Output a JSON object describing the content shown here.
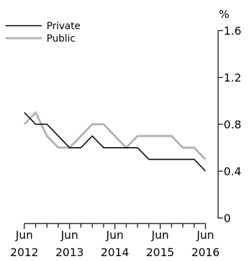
{
  "chart_data": {
    "type": "line",
    "title": "",
    "xlabel": "",
    "ylabel": "%",
    "ylim": [
      0,
      1.6
    ],
    "yticks": [
      0,
      0.4,
      0.8,
      1.2,
      1.6
    ],
    "ytick_labels": [
      "0",
      "0.4",
      "0.8",
      "1.2",
      "1.6"
    ],
    "y_axis_position": "right",
    "grid": false,
    "legend_position": "top-left",
    "x_tick_labels": [
      {
        "month": "Jun",
        "year": "2012"
      },
      {
        "month": "Jun",
        "year": "2013"
      },
      {
        "month": "Jun",
        "year": "2014"
      },
      {
        "month": "Jun",
        "year": "2015"
      },
      {
        "month": "Jun",
        "year": "2016"
      }
    ],
    "x": [
      "Jun 2012",
      "Sep 2012",
      "Dec 2012",
      "Mar 2013",
      "Jun 2013",
      "Sep 2013",
      "Dec 2013",
      "Mar 2014",
      "Jun 2014",
      "Sep 2014",
      "Dec 2014",
      "Mar 2015",
      "Jun 2015",
      "Sep 2015",
      "Dec 2015",
      "Mar 2016",
      "Jun 2016"
    ],
    "series": [
      {
        "name": "Private",
        "color": "#000000",
        "values": [
          0.9,
          0.8,
          0.8,
          0.7,
          0.6,
          0.6,
          0.7,
          0.6,
          0.6,
          0.6,
          0.6,
          0.5,
          0.5,
          0.5,
          0.5,
          0.5,
          0.4
        ]
      },
      {
        "name": "Public",
        "color": "#b3b3b3",
        "values": [
          0.8,
          0.9,
          0.7,
          0.6,
          0.6,
          0.7,
          0.8,
          0.8,
          0.7,
          0.6,
          0.7,
          0.7,
          0.7,
          0.7,
          0.6,
          0.6,
          0.5
        ]
      }
    ]
  }
}
